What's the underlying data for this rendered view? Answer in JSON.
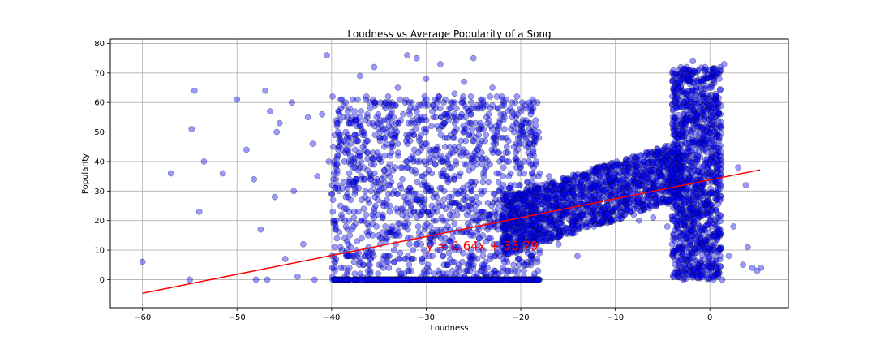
{
  "chart_data": {
    "type": "scatter",
    "title": "Loudness vs Average Popularity of a Song",
    "xlabel": "Loudness",
    "ylabel": "Popularity",
    "xlim": [
      -63.4,
      8.3
    ],
    "ylim": [
      -9.5,
      81.5
    ],
    "xticks": [
      -60,
      -50,
      -40,
      -30,
      -20,
      -10,
      0
    ],
    "yticks": [
      0,
      10,
      20,
      30,
      40,
      50,
      60,
      70,
      80
    ],
    "grid": true,
    "colors": {
      "points": "#0000ff",
      "point_edge": "#000000",
      "regression": "#ff0000",
      "annotation": "#ff0000",
      "grid": "#b0b0b0"
    },
    "marker_alpha": 0.4,
    "regression": {
      "slope": 0.64,
      "intercept": 33.79,
      "x_start": -60.0,
      "x_end": 5.3
    },
    "annotation": {
      "text": "y = 0.64x + 33.79",
      "x": -30,
      "y": 10
    },
    "points_sample": [
      [
        -60.0,
        6
      ],
      [
        -57.0,
        36
      ],
      [
        -55.0,
        0
      ],
      [
        -54.8,
        51
      ],
      [
        -54.5,
        64
      ],
      [
        -54.0,
        23
      ],
      [
        -53.5,
        40
      ],
      [
        -51.5,
        36
      ],
      [
        -50.0,
        61
      ],
      [
        -49.0,
        44
      ],
      [
        -48.2,
        34
      ],
      [
        -48.0,
        0
      ],
      [
        -47.5,
        17
      ],
      [
        -47.0,
        64
      ],
      [
        -46.8,
        0
      ],
      [
        -46.5,
        57
      ],
      [
        -46.0,
        28
      ],
      [
        -45.8,
        50
      ],
      [
        -45.5,
        53
      ],
      [
        -44.9,
        7
      ],
      [
        -44.2,
        60
      ],
      [
        -44.0,
        30
      ],
      [
        -43.6,
        1
      ],
      [
        -43.0,
        12
      ],
      [
        -42.5,
        55
      ],
      [
        -42.0,
        46
      ],
      [
        -41.8,
        0
      ],
      [
        -41.5,
        35
      ],
      [
        -41.0,
        56
      ],
      [
        -40.5,
        76
      ],
      [
        -40.3,
        40
      ],
      [
        -39.9,
        62
      ],
      [
        -39.5,
        20
      ],
      [
        -39.0,
        58
      ],
      [
        -38.5,
        0
      ],
      [
        -38.0,
        48
      ],
      [
        -37.5,
        30
      ],
      [
        -37.0,
        69
      ],
      [
        -36.5,
        8
      ],
      [
        -36.0,
        60
      ],
      [
        -35.5,
        72
      ],
      [
        -35.0,
        42
      ],
      [
        -34.5,
        25
      ],
      [
        -34.0,
        55
      ],
      [
        -33.5,
        15
      ],
      [
        -33.0,
        65
      ],
      [
        -32.5,
        38
      ],
      [
        -32.0,
        76
      ],
      [
        -31.8,
        5
      ],
      [
        -31.5,
        50
      ],
      [
        -31.0,
        75
      ],
      [
        -30.5,
        28
      ],
      [
        -30.0,
        68
      ],
      [
        -29.5,
        12
      ],
      [
        -29.0,
        58
      ],
      [
        -28.5,
        73
      ],
      [
        -28.0,
        45
      ],
      [
        -27.5,
        22
      ],
      [
        -27.0,
        63
      ],
      [
        -26.5,
        35
      ],
      [
        -26.0,
        67
      ],
      [
        -25.0,
        75
      ],
      [
        -24.5,
        18
      ],
      [
        -24.0,
        60
      ],
      [
        -23.5,
        40
      ],
      [
        -23.0,
        65
      ],
      [
        -22.5,
        10
      ],
      [
        -22.0,
        62
      ],
      [
        -21.5,
        48
      ],
      [
        -21.0,
        30
      ],
      [
        -20.5,
        55
      ],
      [
        -20.0,
        38
      ],
      [
        -19.5,
        22
      ],
      [
        -19.0,
        42
      ],
      [
        -18.0,
        36
      ],
      [
        -17.0,
        35
      ],
      [
        -16.0,
        12
      ],
      [
        -15.0,
        31
      ],
      [
        -14.0,
        8
      ],
      [
        -13.0,
        34
      ],
      [
        -12.0,
        37
      ],
      [
        -11.0,
        35
      ],
      [
        -10.0,
        38
      ],
      [
        -9.0,
        36
      ],
      [
        -8.0,
        40
      ],
      [
        -7.5,
        20
      ],
      [
        -7.0,
        38
      ],
      [
        -6.0,
        21
      ],
      [
        -5.0,
        44
      ],
      [
        -4.5,
        18
      ],
      [
        -4.0,
        12
      ],
      [
        -3.5,
        48
      ],
      [
        -3.0,
        52
      ],
      [
        -2.8,
        0
      ],
      [
        -2.5,
        63
      ],
      [
        -2.3,
        8
      ],
      [
        -2.0,
        69
      ],
      [
        -1.8,
        74
      ],
      [
        -1.5,
        58
      ],
      [
        -1.2,
        3
      ],
      [
        -1.0,
        45
      ],
      [
        -0.8,
        67
      ],
      [
        -0.5,
        72
      ],
      [
        -0.3,
        25
      ],
      [
        0.0,
        71
      ],
      [
        0.3,
        10
      ],
      [
        0.5,
        60
      ],
      [
        0.8,
        40
      ],
      [
        1.0,
        68
      ],
      [
        1.3,
        0
      ],
      [
        1.5,
        73
      ],
      [
        2.0,
        8
      ],
      [
        2.5,
        18
      ],
      [
        3.0,
        38
      ],
      [
        3.5,
        5
      ],
      [
        3.8,
        32
      ],
      [
        4.0,
        11
      ],
      [
        4.5,
        4
      ],
      [
        5.0,
        3
      ],
      [
        5.4,
        4
      ]
    ]
  }
}
